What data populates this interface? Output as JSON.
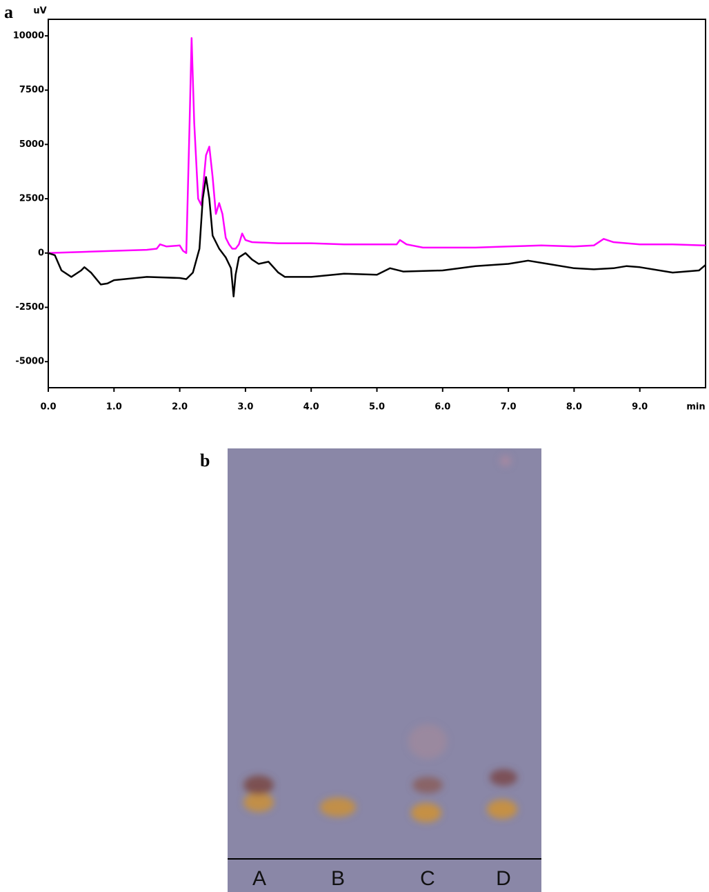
{
  "chart_data": {
    "type": "line",
    "label": "a",
    "y_unit": "uV",
    "x_unit": "min",
    "xlim": [
      0,
      10
    ],
    "ylim": [
      -6200,
      10760
    ],
    "xticks": [
      {
        "value": 0,
        "label": "0.0"
      },
      {
        "value": 1,
        "label": "1.0"
      },
      {
        "value": 2,
        "label": "2.0"
      },
      {
        "value": 3,
        "label": "3.0"
      },
      {
        "value": 4,
        "label": "4.0"
      },
      {
        "value": 5,
        "label": "5.0"
      },
      {
        "value": 6,
        "label": "6.0"
      },
      {
        "value": 7,
        "label": "7.0"
      },
      {
        "value": 8,
        "label": "8.0"
      },
      {
        "value": 9,
        "label": "9.0"
      }
    ],
    "yticks": [
      -5000,
      -2500,
      0,
      2500,
      5000,
      7500,
      10000
    ],
    "grid": false,
    "series": [
      {
        "color": "#ff00ff",
        "x": [
          0,
          0.5,
          1.0,
          1.5,
          1.65,
          1.7,
          1.8,
          2.0,
          2.05,
          2.1,
          2.15,
          2.18,
          2.22,
          2.28,
          2.33,
          2.4,
          2.45,
          2.5,
          2.55,
          2.6,
          2.65,
          2.7,
          2.75,
          2.8,
          2.85,
          2.9,
          2.95,
          3.0,
          3.1,
          3.5,
          4.0,
          4.5,
          5.0,
          5.3,
          5.35,
          5.45,
          5.7,
          6.0,
          6.5,
          7.0,
          7.5,
          8.0,
          8.3,
          8.45,
          8.6,
          9.0,
          9.5,
          10.0
        ],
        "values": [
          0,
          50,
          100,
          150,
          200,
          400,
          300,
          350,
          100,
          0,
          6000,
          9900,
          6000,
          2500,
          2200,
          4500,
          4900,
          3500,
          1800,
          2300,
          1800,
          700,
          400,
          200,
          200,
          400,
          900,
          600,
          500,
          450,
          450,
          400,
          400,
          400,
          600,
          400,
          250,
          250,
          250,
          300,
          350,
          300,
          350,
          650,
          500,
          400,
          400,
          350
        ]
      },
      {
        "color": "#000000",
        "x": [
          0,
          0.1,
          0.2,
          0.35,
          0.5,
          0.55,
          0.65,
          0.8,
          0.9,
          1.0,
          1.5,
          2.0,
          2.1,
          2.2,
          2.3,
          2.35,
          2.4,
          2.45,
          2.5,
          2.6,
          2.7,
          2.78,
          2.82,
          2.85,
          2.9,
          3.0,
          3.1,
          3.2,
          3.35,
          3.5,
          3.6,
          4.0,
          4.5,
          5.0,
          5.2,
          5.4,
          6.0,
          6.5,
          7.0,
          7.3,
          7.6,
          8.0,
          8.3,
          8.6,
          8.8,
          9.0,
          9.5,
          9.9,
          10.0
        ],
        "values": [
          0,
          -100,
          -800,
          -1100,
          -800,
          -650,
          -900,
          -1450,
          -1400,
          -1250,
          -1100,
          -1150,
          -1200,
          -900,
          200,
          2500,
          3500,
          2500,
          800,
          200,
          -200,
          -700,
          -2000,
          -1000,
          -200,
          0,
          -300,
          -500,
          -400,
          -900,
          -1100,
          -1100,
          -950,
          -1000,
          -700,
          -850,
          -800,
          -600,
          -500,
          -350,
          -500,
          -700,
          -750,
          -700,
          -600,
          -650,
          -900,
          -800,
          -550
        ]
      }
    ]
  },
  "panel_b": {
    "label": "b",
    "lanes": [
      "A",
      "B",
      "C",
      "D"
    ]
  }
}
